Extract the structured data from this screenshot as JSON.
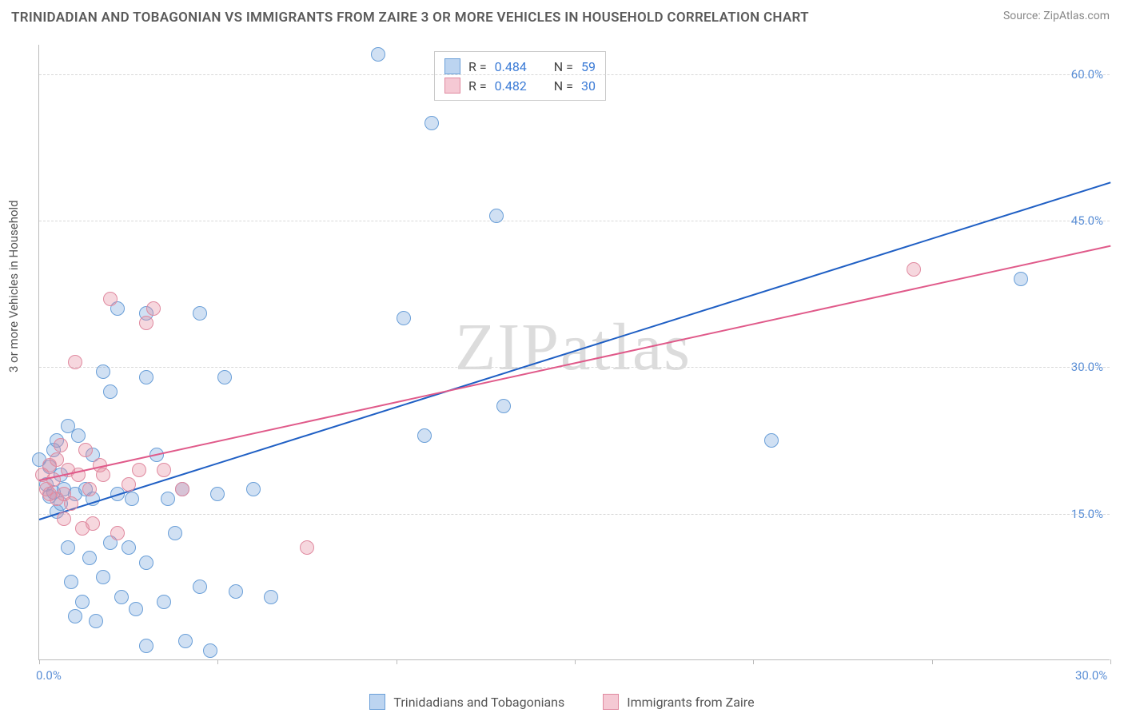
{
  "title": "TRINIDADIAN AND TOBAGONIAN VS IMMIGRANTS FROM ZAIRE 3 OR MORE VEHICLES IN HOUSEHOLD CORRELATION CHART",
  "source": "Source: ZipAtlas.com",
  "ylabel": "3 or more Vehicles in Household",
  "watermark": "ZIPatlas",
  "xlim": [
    0,
    30
  ],
  "ylim": [
    0,
    63
  ],
  "xtick_positions": [
    0,
    5,
    10,
    15,
    20,
    25,
    30
  ],
  "xtick_labels": {
    "0": "0.0%",
    "30": "30.0%"
  },
  "ytick_positions": [
    15,
    30,
    45,
    60
  ],
  "ytick_labels": [
    "15.0%",
    "30.0%",
    "45.0%",
    "60.0%"
  ],
  "grid_color": "#d8d8d8",
  "axis_color": "#bbbbbb",
  "tick_label_color": "#5b8fd6",
  "background_color": "#ffffff",
  "series": [
    {
      "name": "Trinidadians and Tobagonians",
      "swatch_fill": "#bcd4f0",
      "swatch_border": "#6a9fd8",
      "point_fill": "rgba(120,165,220,0.35)",
      "point_border": "#6a9fd8",
      "point_radius": 9,
      "line_color": "#1f5fc4",
      "line": {
        "x1": 0,
        "y1": 14.5,
        "x2": 30,
        "y2": 49.0
      },
      "R": "0.484",
      "N": "59",
      "points": [
        [
          0.0,
          20.5
        ],
        [
          0.2,
          18.0
        ],
        [
          0.3,
          16.8
        ],
        [
          0.3,
          19.8
        ],
        [
          0.4,
          17.2
        ],
        [
          0.4,
          21.5
        ],
        [
          0.5,
          15.2
        ],
        [
          0.5,
          22.5
        ],
        [
          0.6,
          16.0
        ],
        [
          0.6,
          19.0
        ],
        [
          0.7,
          17.5
        ],
        [
          0.8,
          24.0
        ],
        [
          0.8,
          11.5
        ],
        [
          0.9,
          8.0
        ],
        [
          1.0,
          4.5
        ],
        [
          1.0,
          17.0
        ],
        [
          1.1,
          23.0
        ],
        [
          1.2,
          6.0
        ],
        [
          1.3,
          17.5
        ],
        [
          1.4,
          10.5
        ],
        [
          1.5,
          16.5
        ],
        [
          1.5,
          21.0
        ],
        [
          1.6,
          4.0
        ],
        [
          1.8,
          29.5
        ],
        [
          1.8,
          8.5
        ],
        [
          2.0,
          27.5
        ],
        [
          2.0,
          12.0
        ],
        [
          2.2,
          36.0
        ],
        [
          2.2,
          17.0
        ],
        [
          2.3,
          6.5
        ],
        [
          2.5,
          11.5
        ],
        [
          2.6,
          16.5
        ],
        [
          2.7,
          5.2
        ],
        [
          3.0,
          35.5
        ],
        [
          3.0,
          29.0
        ],
        [
          3.0,
          10.0
        ],
        [
          3.0,
          1.5
        ],
        [
          3.3,
          21.0
        ],
        [
          3.5,
          6.0
        ],
        [
          3.6,
          16.5
        ],
        [
          3.8,
          13.0
        ],
        [
          4.0,
          17.5
        ],
        [
          4.1,
          2.0
        ],
        [
          4.5,
          35.5
        ],
        [
          4.5,
          7.5
        ],
        [
          4.8,
          1.0
        ],
        [
          5.0,
          17.0
        ],
        [
          5.2,
          29.0
        ],
        [
          5.5,
          7.0
        ],
        [
          6.0,
          17.5
        ],
        [
          6.5,
          6.5
        ],
        [
          9.5,
          62.0
        ],
        [
          10.2,
          35.0
        ],
        [
          10.8,
          23.0
        ],
        [
          11.0,
          55.0
        ],
        [
          12.8,
          45.5
        ],
        [
          13.0,
          26.0
        ],
        [
          20.5,
          22.5
        ],
        [
          27.5,
          39.0
        ]
      ]
    },
    {
      "name": "Immigrants from Zaire",
      "swatch_fill": "#f5c9d4",
      "swatch_border": "#e08aa0",
      "point_fill": "rgba(230,140,160,0.35)",
      "point_border": "#e08aa0",
      "point_radius": 9,
      "line_color": "#e05a8a",
      "line": {
        "x1": 0,
        "y1": 18.5,
        "x2": 30,
        "y2": 42.5
      },
      "R": "0.482",
      "N": "30",
      "points": [
        [
          0.1,
          19.0
        ],
        [
          0.2,
          17.5
        ],
        [
          0.3,
          20.0
        ],
        [
          0.3,
          17.0
        ],
        [
          0.4,
          18.5
        ],
        [
          0.5,
          16.5
        ],
        [
          0.5,
          20.5
        ],
        [
          0.6,
          22.0
        ],
        [
          0.7,
          17.0
        ],
        [
          0.7,
          14.5
        ],
        [
          0.8,
          19.5
        ],
        [
          0.9,
          16.0
        ],
        [
          1.0,
          30.5
        ],
        [
          1.1,
          19.0
        ],
        [
          1.2,
          13.5
        ],
        [
          1.3,
          21.5
        ],
        [
          1.4,
          17.5
        ],
        [
          1.5,
          14.0
        ],
        [
          1.7,
          20.0
        ],
        [
          1.8,
          19.0
        ],
        [
          2.0,
          37.0
        ],
        [
          2.2,
          13.0
        ],
        [
          2.5,
          18.0
        ],
        [
          2.8,
          19.5
        ],
        [
          3.0,
          34.5
        ],
        [
          3.2,
          36.0
        ],
        [
          3.5,
          19.5
        ],
        [
          4.0,
          17.5
        ],
        [
          7.5,
          11.5
        ],
        [
          24.5,
          40.0
        ]
      ]
    }
  ],
  "legend_bottom": [
    {
      "label": "Trinidadians and Tobagonians",
      "fill": "#bcd4f0",
      "border": "#6a9fd8"
    },
    {
      "label": "Immigrants from Zaire",
      "fill": "#f5c9d4",
      "border": "#e08aa0"
    }
  ]
}
